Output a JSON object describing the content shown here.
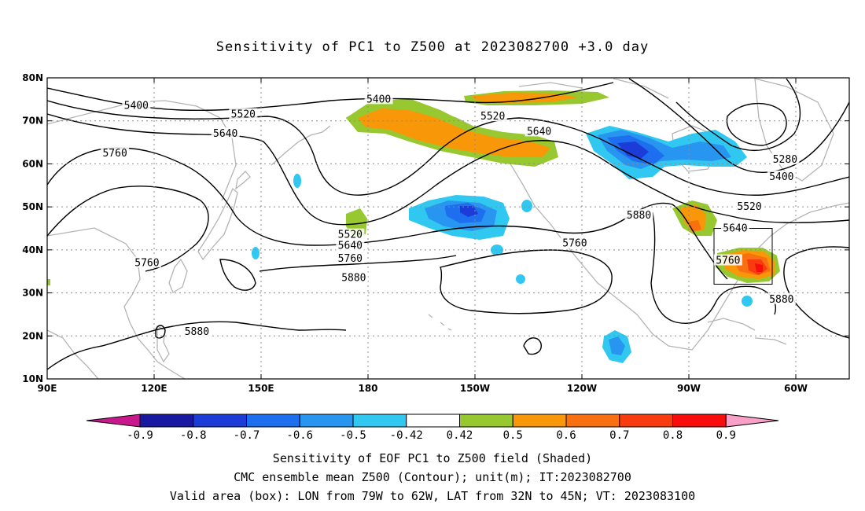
{
  "title": "Sensitivity of PC1 to Z500 at 2023082700 +3.0 day",
  "map": {
    "lon_labels": [
      "90E",
      "120E",
      "150E",
      "180",
      "150W",
      "120W",
      "90W",
      "60W"
    ],
    "lat_labels": [
      "80N",
      "70N",
      "60N",
      "50N",
      "40N",
      "30N",
      "20N",
      "10N"
    ],
    "extent": {
      "lon_min": 90,
      "lon_max": 315,
      "lat_min": 10,
      "lat_max": 80
    },
    "valid_box": {
      "lon_west": "79W",
      "lon_east": "62W",
      "lat_south": "32N",
      "lat_north": "45N"
    }
  },
  "contour_labels": [
    {
      "text": "5400",
      "lon": 115,
      "lat": 73.5
    },
    {
      "text": "5400",
      "lon": 183,
      "lat": 75
    },
    {
      "text": "5520",
      "lon": 145,
      "lat": 71.5
    },
    {
      "text": "5520",
      "lon": 215,
      "lat": 71
    },
    {
      "text": "5640",
      "lon": 140,
      "lat": 67
    },
    {
      "text": "5640",
      "lon": 228,
      "lat": 67.5
    },
    {
      "text": "5760",
      "lon": 109,
      "lat": 62.5
    },
    {
      "text": "5280",
      "lon": 297,
      "lat": 61
    },
    {
      "text": "5400",
      "lon": 296,
      "lat": 57
    },
    {
      "text": "5520",
      "lon": 287,
      "lat": 50
    },
    {
      "text": "5640",
      "lon": 283,
      "lat": 45
    },
    {
      "text": "5880",
      "lon": 256,
      "lat": 48
    },
    {
      "text": "5760",
      "lon": 238,
      "lat": 41.5
    },
    {
      "text": "5520",
      "lon": 175,
      "lat": 43.5
    },
    {
      "text": "5640",
      "lon": 175,
      "lat": 41
    },
    {
      "text": "5760",
      "lon": 175,
      "lat": 38
    },
    {
      "text": "5880",
      "lon": 176,
      "lat": 33.5
    },
    {
      "text": "5760",
      "lon": 118,
      "lat": 37
    },
    {
      "text": "5760",
      "lon": 281,
      "lat": 37.5
    },
    {
      "text": "5880",
      "lon": 296,
      "lat": 28.5
    },
    {
      "text": "5880",
      "lon": 132,
      "lat": 21
    }
  ],
  "colorbar": {
    "labels": [
      "-0.9",
      "-0.8",
      "-0.7",
      "-0.6",
      "-0.5",
      "-0.42",
      "0.42",
      "0.5",
      "0.6",
      "0.7",
      "0.8",
      "0.9"
    ],
    "colors": [
      "#c8188c",
      "#1818a0",
      "#1c3cd8",
      "#1e6ef0",
      "#2896f0",
      "#30c8f0",
      "#ffffff",
      "#98c830",
      "#f89808",
      "#f87010",
      "#f83c10",
      "#f80c0c",
      "#f8a0c8"
    ]
  },
  "shading_colors": {
    "neg_weak": "#30c8f0",
    "neg_mid": "#2896f0",
    "neg_strong": "#1e6ef0",
    "neg_vstrong": "#1c3cd8",
    "neg_max": "#1818a0",
    "pos_weak": "#98c830",
    "pos_mid": "#f89808",
    "pos_strong": "#f87010",
    "pos_vstrong": "#f83c10"
  },
  "captions": {
    "line1": "Sensitivity of EOF PC1 to Z500 field (Shaded)",
    "line2": "CMC ensemble mean Z500 (Contour); unit(m); IT:2023082700",
    "line3": "Valid area (box): LON from 79W to 62W, LAT from 32N to 45N; VT: 2023083100"
  }
}
